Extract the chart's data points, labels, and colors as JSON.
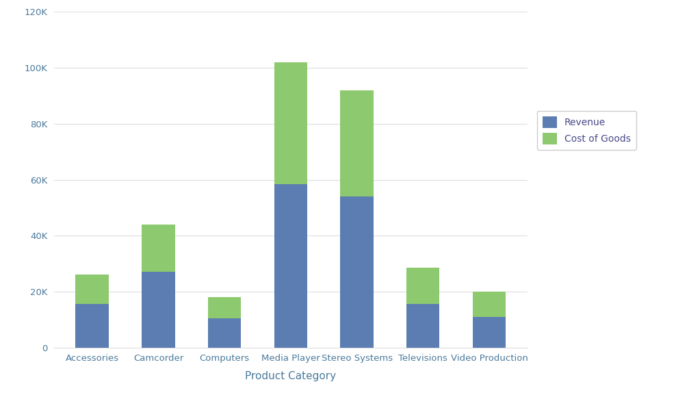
{
  "categories": [
    "Accessories",
    "Camcorder",
    "Computers",
    "Media Player",
    "Stereo Systems",
    "Televisions",
    "Video Production"
  ],
  "revenue": [
    15500,
    27000,
    10500,
    58500,
    54000,
    15500,
    11000
  ],
  "cost_of_goods": [
    10500,
    17000,
    7500,
    43500,
    38000,
    13000,
    9000
  ],
  "revenue_color": "#5b7db1",
  "cog_color": "#8dc96e",
  "revenue_label": "Revenue",
  "cog_label": "Cost of Goods",
  "xlabel": "Product Category",
  "ylabel": "",
  "ylim": [
    0,
    120000
  ],
  "yticks": [
    0,
    20000,
    40000,
    60000,
    80000,
    100000,
    120000
  ],
  "background_color": "#ffffff",
  "grid_color": "#dddddd",
  "bar_width": 0.5,
  "title": "",
  "axis_label_color": "#4a4a8a",
  "tick_label_color": "#4a7a9b"
}
